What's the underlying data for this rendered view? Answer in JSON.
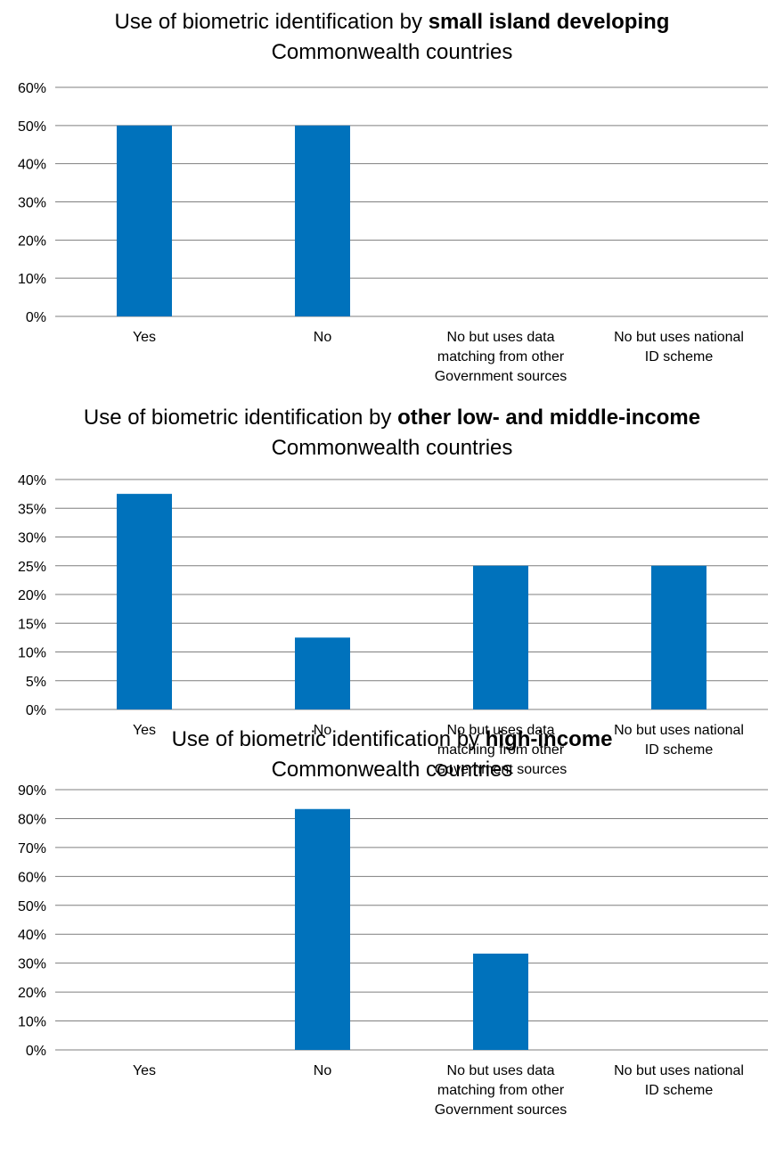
{
  "colors": {
    "bar": "#0072BC",
    "grid": "#7F7F7F"
  },
  "chart_data": [
    {
      "type": "bar",
      "title": "Use of biometric identification by small island developing Commonwealth countries",
      "title_parts": [
        "Use of biometric identification by ",
        "small island developing",
        "Commonwealth countries"
      ],
      "categories": [
        "Yes",
        "No",
        "No but uses data matching from other Government sources",
        "No but uses national ID scheme"
      ],
      "category_lines": [
        [
          "Yes"
        ],
        [
          "No"
        ],
        [
          "No but uses data",
          "matching from other",
          "Government sources"
        ],
        [
          "No but uses national",
          "ID scheme"
        ]
      ],
      "values": [
        50,
        50,
        0,
        0
      ],
      "ylim": [
        0,
        60
      ],
      "yticks": [
        0,
        10,
        20,
        30,
        40,
        50,
        60
      ],
      "ytick_labels": [
        "0%",
        "10%",
        "20%",
        "30%",
        "40%",
        "50%",
        "60%"
      ],
      "grid": true,
      "legend": "none"
    },
    {
      "type": "bar",
      "title": "Use of biometric identification by other low- and middle-income Commonwealth countries",
      "title_parts": [
        "Use of biometric identification by ",
        "other low- and middle-income",
        "Commonwealth countries"
      ],
      "categories": [
        "Yes",
        "No",
        "No but uses data matching from other Government sources",
        "No but uses national ID scheme"
      ],
      "category_lines": [
        [
          "Yes"
        ],
        [
          "No"
        ],
        [
          "No but uses data",
          "matching from other",
          "Government sources"
        ],
        [
          "No but uses national",
          "ID scheme"
        ]
      ],
      "values": [
        37.5,
        12.5,
        25,
        25
      ],
      "ylim": [
        0,
        40
      ],
      "yticks": [
        0,
        5,
        10,
        15,
        20,
        25,
        30,
        35,
        40
      ],
      "ytick_labels": [
        "0%",
        "5%",
        "10%",
        "15%",
        "20%",
        "25%",
        "30%",
        "35%",
        "40%"
      ],
      "grid": true,
      "legend": "none"
    },
    {
      "type": "bar",
      "title": "Use of biometric identification by high-income Commonwealth countries",
      "title_parts": [
        "Use of biometric identification by ",
        "high-income",
        "Commonwealth countries"
      ],
      "categories": [
        "Yes",
        "No",
        "No but uses data matching from other Government sources",
        "No but uses national ID scheme"
      ],
      "category_lines": [
        [
          "Yes"
        ],
        [
          "No"
        ],
        [
          "No but uses data",
          "matching from other",
          "Government sources"
        ],
        [
          "No but uses national",
          "ID scheme"
        ]
      ],
      "values": [
        0,
        83.3,
        33.3,
        0
      ],
      "ylim": [
        0,
        90
      ],
      "yticks": [
        0,
        10,
        20,
        30,
        40,
        50,
        60,
        70,
        80,
        90
      ],
      "ytick_labels": [
        "0%",
        "10%",
        "20%",
        "30%",
        "40%",
        "50%",
        "60%",
        "70%",
        "80%",
        "90%"
      ],
      "grid": true,
      "legend": "none"
    }
  ]
}
